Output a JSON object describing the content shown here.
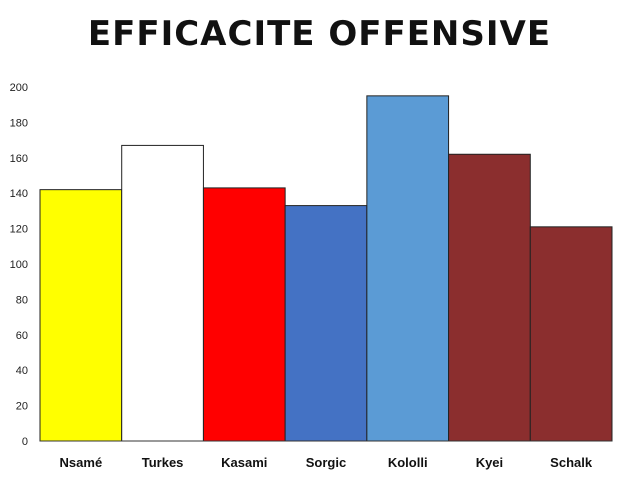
{
  "chart_data": {
    "type": "bar",
    "title": "EFFICACITE OFFENSIVE",
    "xlabel": "",
    "ylabel": "",
    "ylim": [
      0,
      200
    ],
    "yticks": [
      0,
      20,
      40,
      60,
      80,
      100,
      120,
      140,
      160,
      180,
      200
    ],
    "grid": false,
    "legend": "none",
    "categories": [
      "Nsamé",
      "Turkes",
      "Kasami",
      "Sorgic",
      "Kololli",
      "Kyei",
      "Schalk"
    ],
    "values": [
      142,
      167,
      143,
      133,
      195,
      162,
      121
    ],
    "colors": [
      "#ffff00",
      "#ffffff",
      "#ff0000",
      "#4472c4",
      "#5b9bd5",
      "#8b2e2e",
      "#8b2e2e"
    ]
  }
}
